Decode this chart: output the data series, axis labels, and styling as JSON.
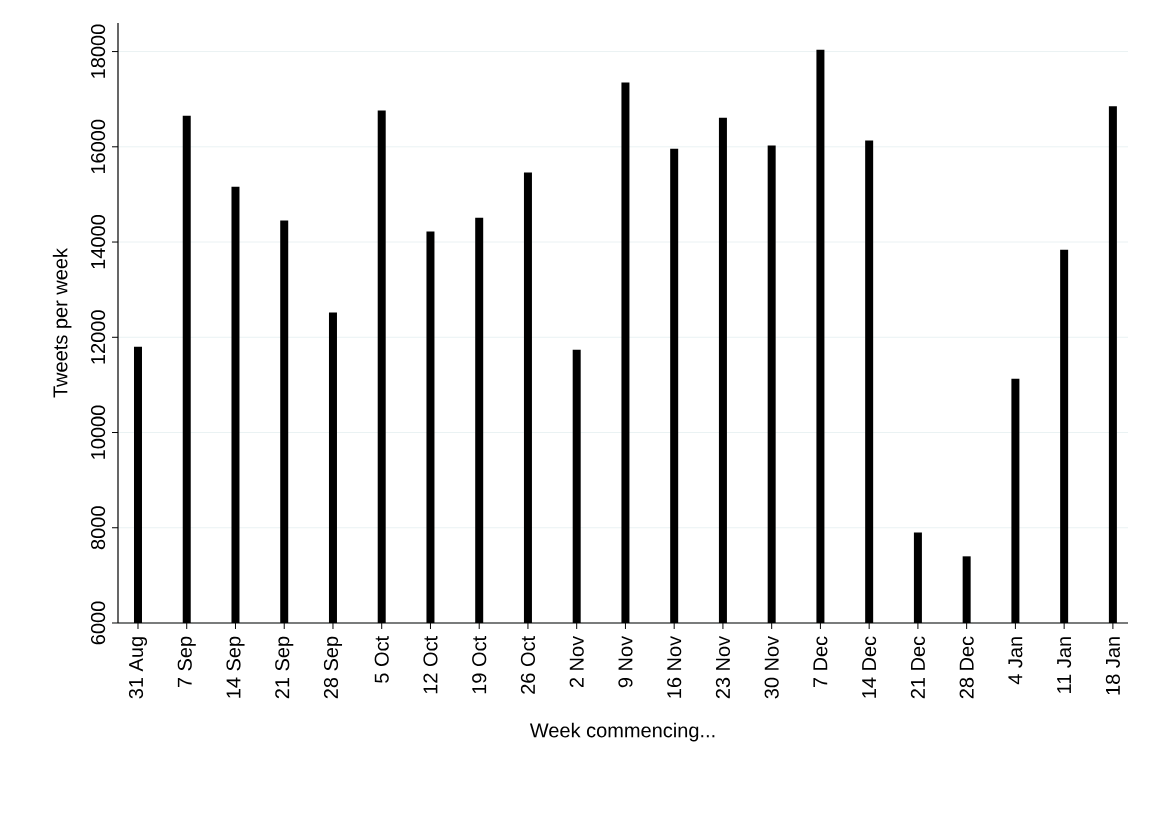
{
  "chart_data": {
    "type": "bar",
    "xlabel": "Week commencing...",
    "ylabel": "Tweets per week",
    "categories": [
      "31 Aug",
      "7 Sep",
      "14 Sep",
      "21 Sep",
      "28 Sep",
      "5 Oct",
      "12 Oct",
      "19 Oct",
      "26 Oct",
      "2 Nov",
      "9 Nov",
      "16 Nov",
      "23 Nov",
      "30 Nov",
      "7 Dec",
      "14 Dec",
      "21 Dec",
      "28 Dec",
      "4 Jan",
      "11 Jan",
      "18 Jan"
    ],
    "values": [
      11800,
      16650,
      15160,
      14450,
      12520,
      16760,
      14220,
      14510,
      15460,
      11740,
      17350,
      15960,
      16610,
      16030,
      18040,
      16130,
      7900,
      7400,
      11130,
      13840,
      16850
    ],
    "color": "#000000",
    "ylim": [
      6000,
      18600
    ],
    "yticks": [
      6000,
      8000,
      10000,
      12000,
      14000,
      16000,
      18000
    ],
    "grid": "y"
  }
}
